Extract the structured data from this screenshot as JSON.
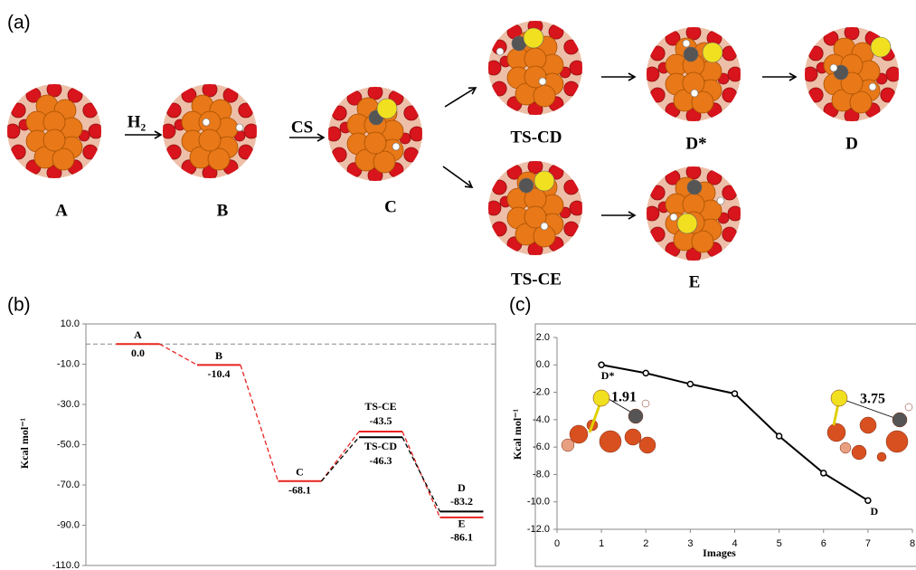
{
  "panels": {
    "a": "(a)",
    "b": "(b)",
    "c": "(c)"
  },
  "scheme": {
    "structures": [
      "A",
      "B",
      "C",
      "TS-CD",
      "D*",
      "D",
      "TS-CE",
      "E"
    ],
    "arrow_labels": [
      "H₂",
      "CS"
    ]
  },
  "chart_data": [
    {
      "type": "energy_profile",
      "ylabel": "Kcal mol⁻¹",
      "ylim": [
        -110,
        10
      ],
      "yticks": [
        {
          "value": 10,
          "label": "10.0"
        },
        {
          "value": -10,
          "label": "-10.0"
        },
        {
          "value": -30,
          "label": "-30.0"
        },
        {
          "value": -50,
          "label": "-50.0"
        },
        {
          "value": -70,
          "label": "-70.0"
        },
        {
          "value": -90,
          "label": "-90.0"
        },
        {
          "value": -110,
          "label": "-110.0"
        }
      ],
      "reference_line": 0,
      "series": [
        {
          "color": "#e8231f",
          "x": [
            1,
            2,
            3,
            4,
            5
          ],
          "labels": [
            "A",
            "B",
            "C",
            "TS-CE",
            "E"
          ],
          "values": [
            0,
            -10.4,
            -68.1,
            -43.5,
            -86.1
          ],
          "value_labels": [
            "0.0",
            "-10.4",
            "-68.1",
            "-43.5",
            "-86.1"
          ]
        },
        {
          "color": "#000000",
          "x": [
            4,
            5
          ],
          "labels": [
            "TS-CD",
            "D"
          ],
          "values": [
            -46.3,
            -83.2
          ],
          "value_labels": [
            "-46.3",
            "-83.2"
          ]
        }
      ]
    },
    {
      "type": "line",
      "xlabel": "Images",
      "ylabel": "Kcal mol⁻¹",
      "x": [
        1,
        2,
        3,
        4,
        5,
        6,
        7
      ],
      "xlim": [
        0,
        8
      ],
      "xticks": [
        0,
        1,
        2,
        3,
        4,
        5,
        6,
        7,
        8
      ],
      "ylim": [
        -12,
        2
      ],
      "yticks": [
        {
          "value": 2,
          "label": "2.0"
        },
        {
          "value": 0,
          "label": "0.0"
        },
        {
          "value": -2,
          "label": "-2.0"
        },
        {
          "value": -4,
          "label": "-4.0"
        },
        {
          "value": -6,
          "label": "-6.0"
        },
        {
          "value": -8,
          "label": "-8.0"
        },
        {
          "value": -10,
          "label": "-10.0"
        },
        {
          "value": -12,
          "label": "-12.0"
        }
      ],
      "series": [
        {
          "color": "#000000",
          "values": [
            0,
            -0.6,
            -1.4,
            -2.1,
            -5.2,
            -7.9,
            -9.9
          ],
          "point_labels": [
            "D*",
            null,
            null,
            null,
            null,
            null,
            "D"
          ]
        }
      ],
      "annotations": [
        "1.91",
        "3.75"
      ]
    }
  ]
}
